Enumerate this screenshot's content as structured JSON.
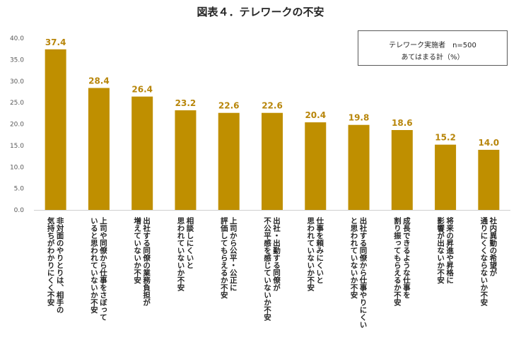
{
  "chart_data": {
    "type": "bar",
    "title": "図表４．テレワークの不安",
    "legend": {
      "line1": "テレワーク実施者　n=500",
      "line2": "あてはまる計（%）"
    },
    "ylim": [
      0,
      40
    ],
    "yticks": [
      "0.0",
      "5.0",
      "10.0",
      "15.0",
      "20.0",
      "25.0",
      "30.0",
      "35.0",
      "40.0"
    ],
    "bar_color": "#bf8f00",
    "label_color": "#b8860b",
    "categories": [
      "非対面のやりとりは、相手の気持ちがわかりにくく不安",
      "上司や同僚から仕事をさぼっていると思われていないか不安",
      "出社する同僚の業務負担が増えていないか不安",
      "相談しにくいと思われていないか不安",
      "上司から公平・公正に評価してもらえるか不安",
      "出社・出勤する同僚が不公平感を感じていないか不安",
      "仕事を頼みにくいと思われていないか不安",
      "出社する同僚から仕事やりにくいと思われていないか不安",
      "成長できるような仕事を割り振ってもらえるか不安",
      "将来の昇進や昇格に影響が出ないか不安",
      "社内異動の希望が通りにくくならないか不安"
    ],
    "category_lines": [
      [
        "非対面のやりとりは、相手の",
        "気持ちがわかりにくく不安"
      ],
      [
        "上司や同僚から仕事をさぼって",
        "いると思われていないか不安"
      ],
      [
        "出社する同僚の業務負担が",
        "増えていないか不安"
      ],
      [
        "相談しにくいと",
        "思われていないか不安"
      ],
      [
        "上司から公平・公正に",
        "評価してもらえるか不安"
      ],
      [
        "出社・出勤する同僚が",
        "不公平感を感じていないか不安"
      ],
      [
        "仕事を頼みにくいと",
        "思われていないか不安"
      ],
      [
        "出社する同僚から仕事やりにくい",
        "と思われていないか不安"
      ],
      [
        "成長できるような仕事を",
        "割り振ってもらえるか不安"
      ],
      [
        "将来の昇進や昇格に",
        "影響が出ないか不安"
      ],
      [
        "社内異動の希望が",
        "通りにくくならないか不安"
      ]
    ],
    "values": [
      37.4,
      28.4,
      26.4,
      23.2,
      22.6,
      22.6,
      20.4,
      19.8,
      18.6,
      15.2,
      14.0
    ],
    "value_labels": [
      "37.4",
      "28.4",
      "26.4",
      "23.2",
      "22.6",
      "22.6",
      "20.4",
      "19.8",
      "18.6",
      "15.2",
      "14.0"
    ]
  }
}
